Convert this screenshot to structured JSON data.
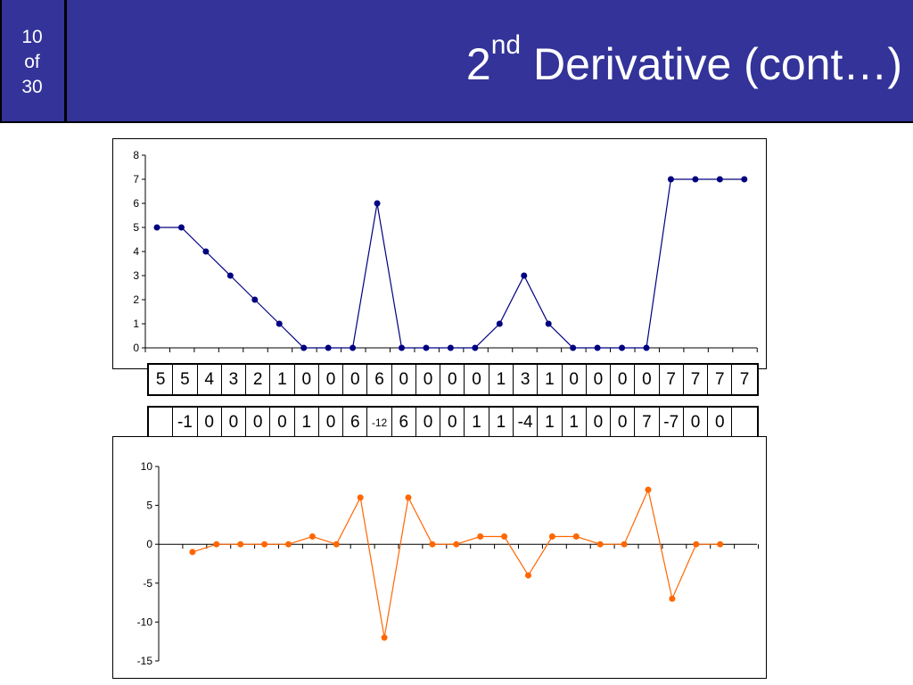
{
  "header": {
    "page_current": "10",
    "page_of": "of",
    "page_total": "30",
    "title_prefix": "2",
    "title_sup": "nd",
    "title_rest": " Derivative (cont…)"
  },
  "colors": {
    "header_bg": "#333399",
    "series_original": "#000080",
    "series_derivative": "#FF6600"
  },
  "sequence_original": [
    "5",
    "5",
    "4",
    "3",
    "2",
    "1",
    "0",
    "0",
    "0",
    "6",
    "0",
    "0",
    "0",
    "0",
    "1",
    "3",
    "1",
    "0",
    "0",
    "0",
    "0",
    "7",
    "7",
    "7",
    "7"
  ],
  "sequence_second_derivative": [
    "",
    "-1",
    "0",
    "0",
    "0",
    "0",
    "1",
    "0",
    "6",
    "-12",
    "6",
    "0",
    "0",
    "1",
    "1",
    "-4",
    "1",
    "1",
    "0",
    "0",
    "7",
    "-7",
    "0",
    "0",
    ""
  ],
  "chart_data": [
    {
      "type": "line",
      "x": [
        1,
        2,
        3,
        4,
        5,
        6,
        7,
        8,
        9,
        10,
        11,
        12,
        13,
        14,
        15,
        16,
        17,
        18,
        19,
        20,
        21,
        22,
        23,
        24,
        25
      ],
      "values": [
        5,
        5,
        4,
        3,
        2,
        1,
        0,
        0,
        0,
        6,
        0,
        0,
        0,
        0,
        1,
        3,
        1,
        0,
        0,
        0,
        0,
        7,
        7,
        7,
        7
      ],
      "ylim": [
        0,
        8
      ],
      "yticks": [
        "0",
        "1",
        "2",
        "3",
        "4",
        "5",
        "6",
        "7",
        "8"
      ],
      "grid": false,
      "markers": true
    },
    {
      "type": "line",
      "x": [
        2,
        3,
        4,
        5,
        6,
        7,
        8,
        9,
        10,
        11,
        12,
        13,
        14,
        15,
        16,
        17,
        18,
        19,
        20,
        21,
        22,
        23,
        24
      ],
      "values": [
        -1,
        0,
        0,
        0,
        0,
        1,
        0,
        6,
        -12,
        6,
        0,
        0,
        1,
        1,
        -4,
        1,
        1,
        0,
        0,
        7,
        -7,
        0,
        0
      ],
      "ylim": [
        -15,
        10
      ],
      "yticks": [
        "-15",
        "-10",
        "-5",
        "0",
        "5",
        "10"
      ],
      "grid": false,
      "markers": true
    }
  ]
}
